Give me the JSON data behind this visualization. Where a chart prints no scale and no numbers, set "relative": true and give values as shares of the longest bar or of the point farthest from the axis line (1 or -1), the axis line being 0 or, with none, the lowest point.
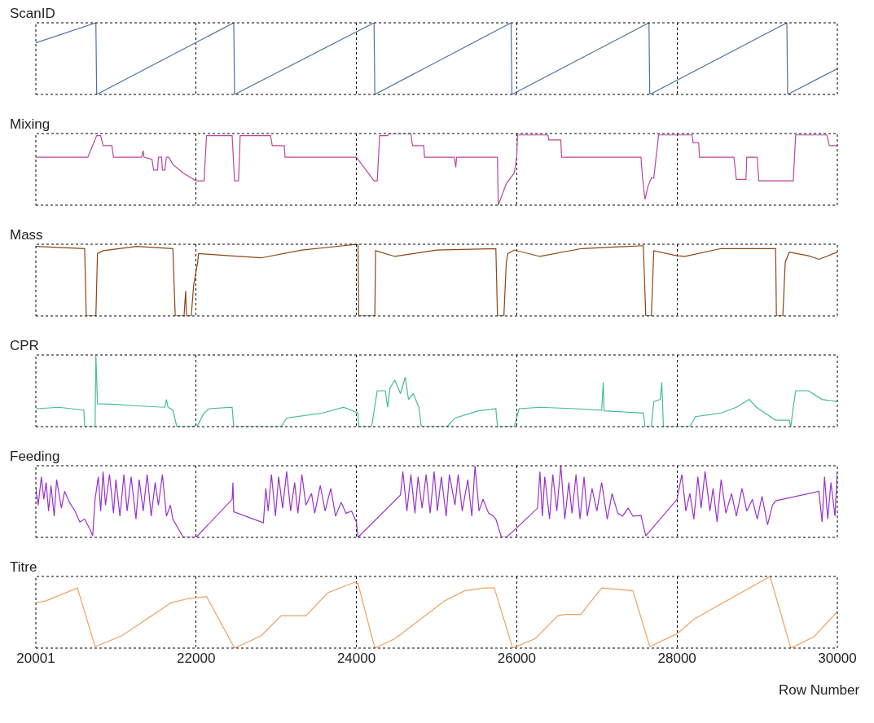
{
  "chart_data": [
    {
      "type": "line",
      "title": "ScanID",
      "relative": true,
      "grid": "x",
      "tick_labels": false,
      "xlim": [
        20001,
        30000
      ],
      "xticks": [
        20001,
        22000,
        24000,
        26000,
        28000,
        30000
      ],
      "x": [
        20001,
        20750,
        20760,
        22470,
        22480,
        24220,
        24230,
        25930,
        25940,
        27650,
        27660,
        29370,
        29380,
        30000
      ],
      "color": "#4c72a0",
      "values": [
        0.72,
        1,
        0,
        1,
        0,
        1,
        0,
        1,
        0,
        1,
        0,
        1,
        0,
        0.36
      ]
    },
    {
      "type": "line",
      "title": "Mixing",
      "relative": true,
      "grid": "x",
      "tick_labels": false,
      "xlim": [
        20001,
        30000
      ],
      "xticks": [
        20001,
        22000,
        24000,
        26000,
        28000,
        30000
      ],
      "x": [
        20001,
        20650,
        20760,
        20810,
        20840,
        20950,
        20970,
        21320,
        21340,
        21350,
        21450,
        21470,
        21520,
        21530,
        21570,
        21580,
        21610,
        21630,
        21660,
        21710,
        21840,
        22000,
        22100,
        22130,
        22450,
        22480,
        22530,
        22550,
        22930,
        22950,
        23100,
        23110,
        24000,
        24220,
        24260,
        24290,
        24390,
        24410,
        24680,
        24700,
        24840,
        24850,
        25220,
        25240,
        25250,
        25760,
        25770,
        25870,
        25970,
        26000,
        26010,
        26390,
        26400,
        26550,
        26560,
        27550,
        27570,
        27600,
        27640,
        27680,
        27710,
        27770,
        28190,
        28200,
        28270,
        28280,
        28710,
        28740,
        28860,
        28870,
        29000,
        29020,
        29450,
        29480,
        29870,
        29900,
        30000
      ],
      "color": "#b8479e",
      "values": [
        0.67,
        0.67,
        0.97,
        0.97,
        0.83,
        0.83,
        0.67,
        0.67,
        0.76,
        0.67,
        0.64,
        0.49,
        0.49,
        0.67,
        0.67,
        0.49,
        0.49,
        0.67,
        0.67,
        0.57,
        0.45,
        0.34,
        0.34,
        0.97,
        0.97,
        0.34,
        0.34,
        0.97,
        0.97,
        0.83,
        0.83,
        0.67,
        0.67,
        0.34,
        0.34,
        0.97,
        0.97,
        1.0,
        1.0,
        0.83,
        0.83,
        0.67,
        0.67,
        0.53,
        0.67,
        0.67,
        0,
        0.3,
        0.45,
        0.67,
        0.98,
        0.98,
        0.91,
        0.91,
        0.67,
        0.67,
        0.38,
        0.08,
        0.27,
        0.38,
        0.38,
        0.98,
        0.98,
        0.87,
        0.87,
        0.67,
        0.67,
        0.36,
        0.36,
        0.67,
        0.67,
        0.34,
        0.34,
        0.98,
        0.98,
        0.83,
        0.83
      ]
    },
    {
      "type": "line",
      "title": "Mass",
      "relative": true,
      "grid": "x",
      "tick_labels": false,
      "xlim": [
        20001,
        30000
      ],
      "xticks": [
        20001,
        22000,
        24000,
        26000,
        28000,
        30000
      ],
      "x": [
        20001,
        20610,
        20630,
        20750,
        20770,
        20840,
        21260,
        21710,
        21740,
        21850,
        21870,
        21880,
        21940,
        21970,
        22020,
        22030,
        22420,
        22810,
        23320,
        23840,
        24020,
        24030,
        24230,
        24240,
        24480,
        25000,
        25740,
        25760,
        25840,
        25870,
        25890,
        25970,
        26290,
        26810,
        27580,
        27610,
        27680,
        27710,
        28000,
        28100,
        28550,
        29230,
        29240,
        29320,
        29350,
        29400,
        29640,
        29770,
        30000
      ],
      "color": "#8b4513",
      "values": [
        0.97,
        0.94,
        0,
        0,
        0.87,
        0.91,
        0.97,
        0.94,
        0,
        0,
        0.35,
        0,
        0,
        0.43,
        0.75,
        0.87,
        0.84,
        0.81,
        0.92,
        0.98,
        1.0,
        0,
        0,
        0.91,
        0.83,
        0.92,
        0.94,
        0,
        0,
        0.75,
        0.87,
        0.92,
        0.83,
        0.94,
        0.98,
        0,
        0,
        0.91,
        0.84,
        0.83,
        0.94,
        0.94,
        0,
        0,
        0.75,
        0.89,
        0.84,
        0.79,
        0.89
      ]
    },
    {
      "type": "line",
      "title": "CPR",
      "relative": true,
      "grid": "x",
      "tick_labels": false,
      "xlim": [
        20001,
        30000
      ],
      "xticks": [
        20001,
        22000,
        24000,
        26000,
        28000,
        30000
      ],
      "x": [
        20001,
        20290,
        20600,
        20610,
        20740,
        20750,
        20770,
        21000,
        21260,
        21610,
        21630,
        21650,
        21710,
        21760,
        21940,
        22020,
        22100,
        22160,
        22450,
        22470,
        23060,
        23130,
        23580,
        23840,
        24020,
        24030,
        24190,
        24260,
        24360,
        24390,
        24420,
        24480,
        24550,
        24610,
        24650,
        24710,
        24780,
        24810,
        25130,
        25230,
        25520,
        25740,
        25760,
        25970,
        26030,
        26290,
        26740,
        27060,
        27080,
        27090,
        27580,
        27600,
        27680,
        27710,
        27790,
        27810,
        27830,
        28160,
        28230,
        28550,
        28740,
        28900,
        28990,
        29230,
        29400,
        29420,
        29450,
        29480,
        29640,
        29810,
        30000
      ],
      "color": "#44bb99",
      "values": [
        0.25,
        0.27,
        0.23,
        0,
        0,
        1,
        0.32,
        0.31,
        0.29,
        0.27,
        0.38,
        0.27,
        0.23,
        0,
        0,
        0.02,
        0.19,
        0.25,
        0.27,
        0,
        0,
        0.12,
        0.19,
        0.27,
        0.19,
        0,
        0,
        0.5,
        0.5,
        0.27,
        0.54,
        0.65,
        0.46,
        0.69,
        0.38,
        0.46,
        0.27,
        0,
        0,
        0.12,
        0.22,
        0.25,
        0,
        0,
        0.25,
        0.27,
        0.25,
        0.23,
        0.62,
        0.22,
        0.19,
        0,
        0,
        0.35,
        0.38,
        0.62,
        0,
        0,
        0.14,
        0.19,
        0.27,
        0.38,
        0.27,
        0.09,
        0.09,
        0,
        0.27,
        0.5,
        0.5,
        0.38,
        0.35
      ]
    },
    {
      "type": "line",
      "title": "Feeding",
      "relative": true,
      "grid": "x",
      "tick_labels": false,
      "xlim": [
        20001,
        30000
      ],
      "xticks": [
        20001,
        22000,
        24000,
        26000,
        28000,
        30000
      ],
      "x": [
        20001,
        20030,
        20070,
        20100,
        20130,
        20160,
        20190,
        20230,
        20260,
        20320,
        20360,
        20420,
        20490,
        20550,
        20610,
        20680,
        20710,
        20740,
        20780,
        20810,
        20840,
        20870,
        20920,
        20970,
        21000,
        21050,
        21100,
        21140,
        21190,
        21250,
        21290,
        21340,
        21390,
        21440,
        21490,
        21530,
        21580,
        21630,
        21680,
        21710,
        21840,
        22000,
        22450,
        22460,
        22470,
        22840,
        22870,
        22900,
        22940,
        22990,
        23030,
        23080,
        23130,
        23180,
        23230,
        23270,
        23320,
        23370,
        23440,
        23480,
        23550,
        23610,
        23680,
        23740,
        23810,
        23870,
        23940,
        24000,
        24020,
        24550,
        24580,
        24630,
        24680,
        24730,
        24770,
        24820,
        24870,
        24920,
        24970,
        25010,
        25060,
        25120,
        25160,
        25230,
        25270,
        25320,
        25390,
        25440,
        25480,
        25530,
        25580,
        25650,
        25710,
        25740,
        25810,
        25870,
        26000,
        26260,
        26290,
        26320,
        26350,
        26410,
        26450,
        26500,
        26550,
        26600,
        26650,
        26690,
        26740,
        26790,
        26840,
        26880,
        26940,
        27000,
        27060,
        27130,
        27190,
        27260,
        27320,
        27390,
        27450,
        27550,
        27610,
        28000,
        28060,
        28110,
        28160,
        28210,
        28260,
        28300,
        28350,
        28410,
        28450,
        28500,
        28550,
        28610,
        28680,
        28740,
        28810,
        28870,
        28940,
        29000,
        29060,
        29130,
        29190,
        29230,
        29770,
        29810,
        29840,
        29880,
        29920,
        29970,
        30000
      ],
      "color": "#9932cc",
      "values": [
        0.69,
        0.46,
        0.85,
        0.54,
        0.77,
        0.38,
        0.73,
        0.31,
        0.81,
        0.42,
        0.65,
        0.5,
        0.38,
        0.23,
        0.27,
        0.12,
        0.04,
        0.54,
        0.85,
        0.38,
        0.92,
        0.46,
        0.88,
        0.35,
        0.81,
        0.31,
        0.88,
        0.38,
        0.85,
        0.27,
        0.81,
        0.38,
        0.88,
        0.31,
        0.77,
        0.46,
        0.88,
        0.31,
        0.46,
        0.27,
        0.02,
        0.02,
        0.54,
        0.77,
        0.37,
        0.22,
        0.69,
        0.38,
        0.88,
        0.31,
        0.85,
        0.42,
        0.92,
        0.38,
        0.77,
        0.35,
        0.88,
        0.46,
        0.62,
        0.35,
        0.73,
        0.38,
        0.69,
        0.31,
        0.5,
        0.35,
        0.38,
        0.23,
        0.02,
        0.6,
        0.92,
        0.38,
        0.88,
        0.35,
        0.85,
        0.42,
        0.88,
        0.35,
        0.92,
        0.38,
        0.85,
        0.31,
        0.88,
        0.46,
        0.88,
        0.38,
        0.81,
        0.31,
        1,
        0.38,
        0.54,
        0.35,
        0.31,
        0.27,
        0.02,
        0.02,
        0.15,
        0.42,
        0.92,
        0.31,
        0.85,
        0.27,
        0.88,
        0.38,
        1,
        0.27,
        0.77,
        0.35,
        0.88,
        0.27,
        0.85,
        0.31,
        0.69,
        0.38,
        0.77,
        0.27,
        0.62,
        0.35,
        0.31,
        0.42,
        0.31,
        0.32,
        0.04,
        0.54,
        0.88,
        0.38,
        0.62,
        0.27,
        0.85,
        0.42,
        0.92,
        0.38,
        0.69,
        0.23,
        0.81,
        0.35,
        0.62,
        0.31,
        0.69,
        0.38,
        0.54,
        0.27,
        0.58,
        0.19,
        0.46,
        0.52,
        0.65,
        0.23,
        0.85,
        0.27,
        0.77,
        0.31,
        0.92
      ]
    },
    {
      "type": "line",
      "title": "Titre",
      "xlabel": "Row Number",
      "relative": true,
      "grid": "x",
      "tick_labels": "x",
      "xlim": [
        20001,
        30000
      ],
      "xticks": [
        20001,
        22000,
        24000,
        26000,
        28000,
        30000
      ],
      "x": [
        20001,
        20130,
        20520,
        20740,
        21070,
        21580,
        21680,
        21900,
        22130,
        22480,
        22810,
        23060,
        23370,
        23640,
        23980,
        24020,
        24230,
        24480,
        25100,
        25350,
        25610,
        25720,
        25950,
        26230,
        26510,
        26610,
        26800,
        27060,
        27260,
        27450,
        27660,
        28000,
        28220,
        29160,
        29420,
        29710,
        30000
      ],
      "color": "#f0a060",
      "values": [
        0.63,
        0.66,
        0.84,
        0.02,
        0.17,
        0.55,
        0.63,
        0.69,
        0.72,
        0,
        0.17,
        0.45,
        0.45,
        0.77,
        0.92,
        0.9,
        0,
        0.13,
        0.66,
        0.8,
        0.84,
        0.84,
        0,
        0.13,
        0.45,
        0.47,
        0.47,
        0.84,
        0.82,
        0.8,
        0.02,
        0.2,
        0.41,
        1,
        0,
        0.16,
        0.51
      ]
    }
  ]
}
